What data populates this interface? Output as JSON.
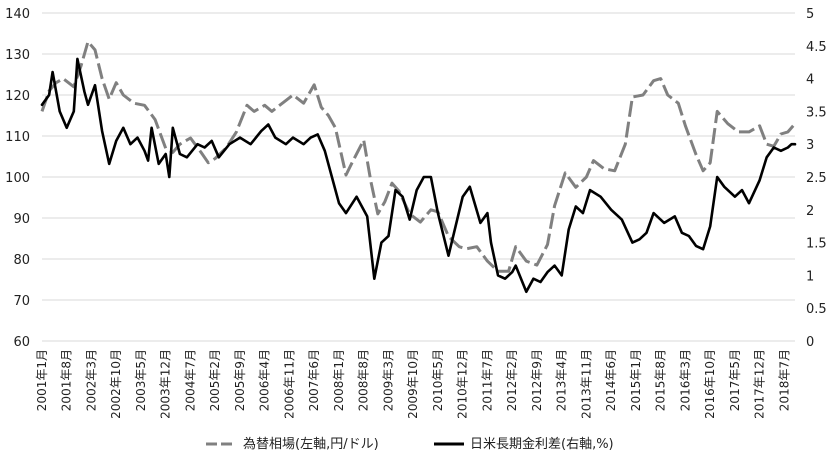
{
  "chart_data": {
    "type": "line",
    "x_start": "2001-01",
    "x_end": "2018-10",
    "x_tick_labels": [
      "2001年1月",
      "2001年8月",
      "2002年3月",
      "2002年10月",
      "2003年5月",
      "2003年12月",
      "2004年7月",
      "2005年2月",
      "2005年9月",
      "2006年4月",
      "2006年11月",
      "2007年6月",
      "2008年1月",
      "2008年8月",
      "2009年3月",
      "2009年10月",
      "2010年5月",
      "2010年12月",
      "2011年7月",
      "2012年2月",
      "2012年9月",
      "2013年4月",
      "2013年11月",
      "2014年6月",
      "2015年1月",
      "2015年8月",
      "2016年3月",
      "2016年10月",
      "2017年5月",
      "2017年12月",
      "2018年7月"
    ],
    "y_left": {
      "ticks": [
        "60",
        "70",
        "80",
        "90",
        "100",
        "110",
        "120",
        "130",
        "140"
      ],
      "range": [
        60,
        140
      ]
    },
    "y_right": {
      "ticks": [
        "0",
        "0.5",
        "1",
        "1.5",
        "2",
        "2.5",
        "3",
        "3.5",
        "4",
        "4.5",
        "5"
      ],
      "range": [
        0,
        5
      ]
    },
    "grid": "horizontal",
    "legend_position": "bottom",
    "series": [
      {
        "name": "為替相場(左軸,円/ドル)",
        "axis": "left",
        "color": "#808080",
        "dash": "dashed",
        "points": [
          [
            "2001-01",
            116
          ],
          [
            "2001-03",
            121
          ],
          [
            "2001-05",
            123
          ],
          [
            "2001-07",
            124
          ],
          [
            "2001-10",
            122
          ],
          [
            "2001-12",
            127
          ],
          [
            "2002-02",
            133
          ],
          [
            "2002-04",
            131
          ],
          [
            "2002-06",
            124
          ],
          [
            "2002-08",
            119
          ],
          [
            "2002-10",
            123
          ],
          [
            "2002-12",
            120
          ],
          [
            "2003-03",
            118
          ],
          [
            "2003-06",
            117.5
          ],
          [
            "2003-09",
            114
          ],
          [
            "2003-12",
            107
          ],
          [
            "2004-02",
            106
          ],
          [
            "2004-04",
            108
          ],
          [
            "2004-07",
            109.5
          ],
          [
            "2004-10",
            106
          ],
          [
            "2004-12",
            103.5
          ],
          [
            "2005-02",
            104.5
          ],
          [
            "2005-05",
            107
          ],
          [
            "2005-08",
            111
          ],
          [
            "2005-11",
            117.5
          ],
          [
            "2006-01",
            116
          ],
          [
            "2006-04",
            117.5
          ],
          [
            "2006-06",
            116
          ],
          [
            "2006-09",
            118
          ],
          [
            "2006-12",
            120
          ],
          [
            "2007-03",
            118
          ],
          [
            "2007-06",
            122.5
          ],
          [
            "2007-08",
            117
          ],
          [
            "2007-10",
            115
          ],
          [
            "2007-12",
            112
          ],
          [
            "2008-03",
            100.5
          ],
          [
            "2008-05",
            104
          ],
          [
            "2008-08",
            109
          ],
          [
            "2008-10",
            99
          ],
          [
            "2008-12",
            91
          ],
          [
            "2009-02",
            94
          ],
          [
            "2009-04",
            98.5
          ],
          [
            "2009-06",
            96.5
          ],
          [
            "2009-09",
            91
          ],
          [
            "2009-12",
            89
          ],
          [
            "2010-03",
            92
          ],
          [
            "2010-05",
            91.5
          ],
          [
            "2010-08",
            85.5
          ],
          [
            "2010-11",
            83
          ],
          [
            "2011-01",
            82.5
          ],
          [
            "2011-04",
            83
          ],
          [
            "2011-07",
            79.5
          ],
          [
            "2011-10",
            77
          ],
          [
            "2012-01",
            77
          ],
          [
            "2012-03",
            83
          ],
          [
            "2012-06",
            79.5
          ],
          [
            "2012-09",
            78.5
          ],
          [
            "2012-12",
            83.5
          ],
          [
            "2013-02",
            93
          ],
          [
            "2013-05",
            101
          ],
          [
            "2013-08",
            97.5
          ],
          [
            "2013-11",
            100
          ],
          [
            "2014-01",
            104
          ],
          [
            "2014-04",
            102
          ],
          [
            "2014-07",
            101.5
          ],
          [
            "2014-10",
            108
          ],
          [
            "2014-12",
            119.5
          ],
          [
            "2015-03",
            120
          ],
          [
            "2015-06",
            123.5
          ],
          [
            "2015-08",
            124
          ],
          [
            "2015-10",
            120
          ],
          [
            "2016-01",
            118
          ],
          [
            "2016-03",
            112.5
          ],
          [
            "2016-06",
            105.5
          ],
          [
            "2016-08",
            101.5
          ],
          [
            "2016-10",
            103.5
          ],
          [
            "2016-12",
            116
          ],
          [
            "2017-03",
            113
          ],
          [
            "2017-06",
            111
          ],
          [
            "2017-09",
            111
          ],
          [
            "2017-12",
            112.5
          ],
          [
            "2018-02",
            108
          ],
          [
            "2018-04",
            107.5
          ],
          [
            "2018-06",
            110.5
          ],
          [
            "2018-08",
            111
          ],
          [
            "2018-10",
            113
          ]
        ]
      },
      {
        "name": "日米長期金利差(右軸,%)",
        "axis": "right",
        "color": "#000000",
        "dash": "solid",
        "points": [
          [
            "2001-01",
            3.6
          ],
          [
            "2001-03",
            3.75
          ],
          [
            "2001-04",
            4.1
          ],
          [
            "2001-06",
            3.5
          ],
          [
            "2001-08",
            3.25
          ],
          [
            "2001-10",
            3.5
          ],
          [
            "2001-11",
            4.3
          ],
          [
            "2002-01",
            3.8
          ],
          [
            "2002-02",
            3.6
          ],
          [
            "2002-04",
            3.9
          ],
          [
            "2002-06",
            3.2
          ],
          [
            "2002-08",
            2.7
          ],
          [
            "2002-10",
            3.05
          ],
          [
            "2002-12",
            3.25
          ],
          [
            "2003-02",
            3.0
          ],
          [
            "2003-04",
            3.1
          ],
          [
            "2003-06",
            2.9
          ],
          [
            "2003-07",
            2.75
          ],
          [
            "2003-08",
            3.25
          ],
          [
            "2003-10",
            2.7
          ],
          [
            "2003-12",
            2.85
          ],
          [
            "2004-01",
            2.5
          ],
          [
            "2004-02",
            3.25
          ],
          [
            "2004-04",
            2.85
          ],
          [
            "2004-06",
            2.8
          ],
          [
            "2004-09",
            3.0
          ],
          [
            "2004-11",
            2.95
          ],
          [
            "2005-01",
            3.05
          ],
          [
            "2005-03",
            2.8
          ],
          [
            "2005-06",
            3.0
          ],
          [
            "2005-09",
            3.1
          ],
          [
            "2005-12",
            3.0
          ],
          [
            "2006-03",
            3.2
          ],
          [
            "2006-05",
            3.3
          ],
          [
            "2006-07",
            3.1
          ],
          [
            "2006-10",
            3.0
          ],
          [
            "2006-12",
            3.1
          ],
          [
            "2007-03",
            3.0
          ],
          [
            "2007-05",
            3.1
          ],
          [
            "2007-07",
            3.15
          ],
          [
            "2007-09",
            2.9
          ],
          [
            "2007-11",
            2.5
          ],
          [
            "2008-01",
            2.1
          ],
          [
            "2008-03",
            1.95
          ],
          [
            "2008-06",
            2.2
          ],
          [
            "2008-09",
            1.9
          ],
          [
            "2008-11",
            0.95
          ],
          [
            "2009-01",
            1.5
          ],
          [
            "2009-03",
            1.6
          ],
          [
            "2009-05",
            2.3
          ],
          [
            "2009-07",
            2.2
          ],
          [
            "2009-09",
            1.85
          ],
          [
            "2009-11",
            2.3
          ],
          [
            "2010-01",
            2.5
          ],
          [
            "2010-03",
            2.5
          ],
          [
            "2010-05",
            1.95
          ],
          [
            "2010-08",
            1.3
          ],
          [
            "2010-10",
            1.75
          ],
          [
            "2010-12",
            2.2
          ],
          [
            "2011-02",
            2.35
          ],
          [
            "2011-05",
            1.8
          ],
          [
            "2011-07",
            1.95
          ],
          [
            "2011-08",
            1.5
          ],
          [
            "2011-10",
            1.0
          ],
          [
            "2011-12",
            0.95
          ],
          [
            "2012-02",
            1.05
          ],
          [
            "2012-03",
            1.15
          ],
          [
            "2012-06",
            0.75
          ],
          [
            "2012-08",
            0.95
          ],
          [
            "2012-10",
            0.9
          ],
          [
            "2012-12",
            1.05
          ],
          [
            "2013-02",
            1.15
          ],
          [
            "2013-04",
            1.0
          ],
          [
            "2013-06",
            1.7
          ],
          [
            "2013-08",
            2.05
          ],
          [
            "2013-10",
            1.95
          ],
          [
            "2013-12",
            2.3
          ],
          [
            "2014-03",
            2.2
          ],
          [
            "2014-06",
            2.0
          ],
          [
            "2014-09",
            1.85
          ],
          [
            "2014-12",
            1.5
          ],
          [
            "2015-02",
            1.55
          ],
          [
            "2015-04",
            1.65
          ],
          [
            "2015-06",
            1.95
          ],
          [
            "2015-09",
            1.8
          ],
          [
            "2015-12",
            1.9
          ],
          [
            "2016-02",
            1.65
          ],
          [
            "2016-04",
            1.6
          ],
          [
            "2016-06",
            1.45
          ],
          [
            "2016-08",
            1.4
          ],
          [
            "2016-10",
            1.75
          ],
          [
            "2016-12",
            2.5
          ],
          [
            "2017-02",
            2.35
          ],
          [
            "2017-05",
            2.2
          ],
          [
            "2017-07",
            2.3
          ],
          [
            "2017-09",
            2.1
          ],
          [
            "2017-12",
            2.45
          ],
          [
            "2018-02",
            2.8
          ],
          [
            "2018-04",
            2.95
          ],
          [
            "2018-06",
            2.9
          ],
          [
            "2018-08",
            2.95
          ],
          [
            "2018-09",
            3.0
          ],
          [
            "2018-10",
            3.0
          ]
        ]
      }
    ]
  }
}
